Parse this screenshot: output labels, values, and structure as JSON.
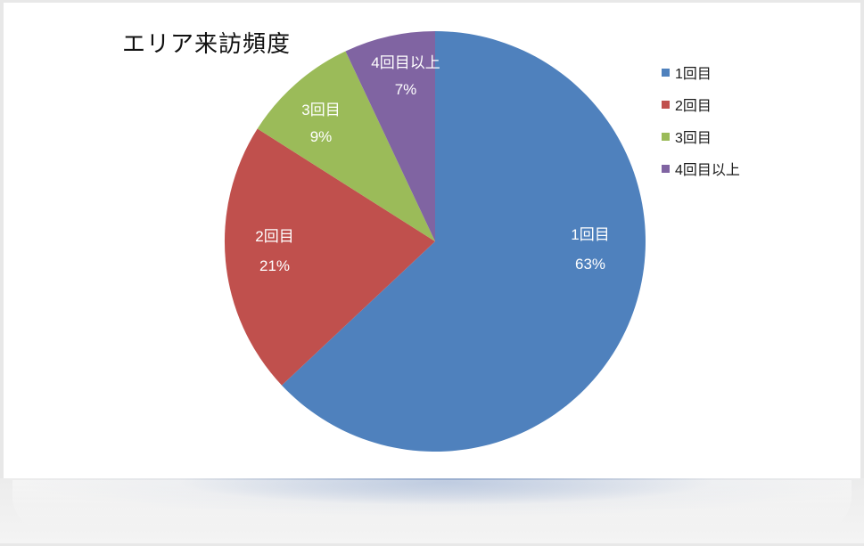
{
  "window": {
    "frame_color": "#e8e8e8",
    "card_background": "#ffffff"
  },
  "chart_data": {
    "type": "pie",
    "title": "エリア来訪頻度",
    "direction": "clockwise",
    "start_angle_deg": 0,
    "legend_position": "right",
    "slices": [
      {
        "label": "1回目",
        "value": 63,
        "display": "63%",
        "color": "#4F81BD"
      },
      {
        "label": "2回目",
        "value": 21,
        "display": "21%",
        "color": "#C0504D"
      },
      {
        "label": "3回目",
        "value": 9,
        "display": "9%",
        "color": "#9BBB59"
      },
      {
        "label": "4回目以上",
        "value": 7,
        "display": "7%",
        "color": "#8064A2"
      }
    ],
    "label_text_color": "#ffffff",
    "reflection_glow_color": "#8aa2c9"
  }
}
